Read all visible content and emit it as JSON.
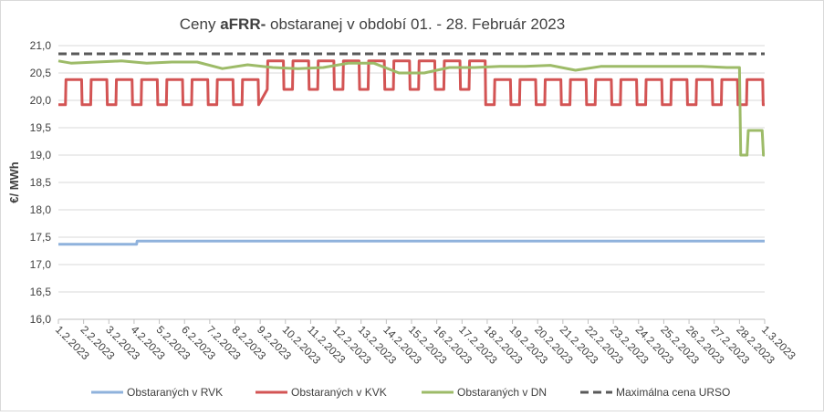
{
  "chart_data": {
    "type": "line",
    "title": {
      "prefix": "Ceny",
      "bold": "aFRR-",
      "rest": "obstaranej v období 01. - 28. Február 2023"
    },
    "y_label": "€/ MWh",
    "xlim": [
      1,
      29
    ],
    "xticks": [
      {
        "value": 1,
        "label": "1.2.2023"
      },
      {
        "value": 2,
        "label": "2.2.2023"
      },
      {
        "value": 3,
        "label": "3.2.2023"
      },
      {
        "value": 4,
        "label": "4.2.2023"
      },
      {
        "value": 5,
        "label": "5.2.2023"
      },
      {
        "value": 6,
        "label": "6.2.2023"
      },
      {
        "value": 7,
        "label": "7.2.2023"
      },
      {
        "value": 8,
        "label": "8.2.2023"
      },
      {
        "value": 9,
        "label": "9.2.2023"
      },
      {
        "value": 10,
        "label": "10.2.2023"
      },
      {
        "value": 11,
        "label": "11.2.2023"
      },
      {
        "value": 12,
        "label": "12.2.2023"
      },
      {
        "value": 13,
        "label": "13.2.2023"
      },
      {
        "value": 14,
        "label": "14.2.2023"
      },
      {
        "value": 15,
        "label": "15.2.2023"
      },
      {
        "value": 16,
        "label": "16.2.2023"
      },
      {
        "value": 17,
        "label": "17.2.2023"
      },
      {
        "value": 18,
        "label": "18.2.2023"
      },
      {
        "value": 19,
        "label": "19.2.2023"
      },
      {
        "value": 20,
        "label": "20.2.2023"
      },
      {
        "value": 21,
        "label": "21.2.2023"
      },
      {
        "value": 22,
        "label": "22.2.2023"
      },
      {
        "value": 23,
        "label": "23.2.2023"
      },
      {
        "value": 24,
        "label": "24.2.2023"
      },
      {
        "value": 25,
        "label": "25.2.2023"
      },
      {
        "value": 26,
        "label": "26.2.2023"
      },
      {
        "value": 27,
        "label": "27.2.2023"
      },
      {
        "value": 28,
        "label": "28.2.2023"
      },
      {
        "value": 29,
        "label": "1.3.2023"
      }
    ],
    "ylim": [
      16,
      21
    ],
    "yticks": [
      {
        "value": 16,
        "label": "16,0"
      },
      {
        "value": 16.5,
        "label": "16,5"
      },
      {
        "value": 17,
        "label": "17,0"
      },
      {
        "value": 17.5,
        "label": "17,5"
      },
      {
        "value": 18,
        "label": "18,0"
      },
      {
        "value": 18.5,
        "label": "18,5"
      },
      {
        "value": 19,
        "label": "19,0"
      },
      {
        "value": 19.5,
        "label": "19,5"
      },
      {
        "value": 20,
        "label": "20,0"
      },
      {
        "value": 20.5,
        "label": "20,5"
      },
      {
        "value": 21,
        "label": "21,0"
      }
    ],
    "grid": true,
    "legend": "bottom",
    "series": [
      {
        "name": "Obstaraných v RVK",
        "color": "#8fb2dc",
        "dashed": false,
        "x": [
          1,
          4.1,
          4.12,
          29
        ],
        "values": [
          17.37,
          17.37,
          17.43,
          17.43
        ]
      },
      {
        "name": "Obstaraných v KVK",
        "color": "#d35454",
        "dashed": false,
        "x": [
          1,
          1.28,
          1.3,
          1.92,
          1.94,
          2.28,
          2.3,
          2.92,
          2.94,
          3.28,
          3.3,
          3.92,
          3.94,
          4.28,
          4.3,
          4.92,
          4.94,
          5.28,
          5.3,
          5.92,
          5.94,
          6.28,
          6.3,
          6.92,
          6.94,
          7.28,
          7.3,
          7.92,
          7.94,
          8.28,
          8.3,
          8.92,
          8.94,
          9.28,
          9.3,
          9.92,
          9.94,
          10.28,
          10.3,
          10.92,
          10.94,
          11.28,
          11.3,
          11.92,
          11.94,
          12.28,
          12.3,
          12.92,
          12.94,
          13.28,
          13.3,
          13.92,
          13.94,
          14.28,
          14.3,
          14.92,
          14.94,
          15.28,
          15.3,
          15.92,
          15.94,
          16.28,
          16.3,
          16.92,
          16.94,
          17.28,
          17.3,
          17.92,
          17.94,
          18.28,
          18.3,
          18.92,
          18.94,
          19.28,
          19.3,
          19.92,
          19.94,
          20.28,
          20.3,
          20.92,
          20.94,
          21.28,
          21.3,
          21.92,
          21.94,
          22.28,
          22.3,
          22.92,
          22.94,
          23.28,
          23.3,
          23.92,
          23.94,
          24.28,
          24.3,
          24.92,
          24.94,
          25.28,
          25.3,
          25.92,
          25.94,
          26.28,
          26.3,
          26.92,
          26.94,
          27.28,
          27.3,
          27.92,
          27.94,
          28.28,
          28.3,
          28.92,
          28.94,
          29
        ],
        "values": [
          19.92,
          19.92,
          20.38,
          20.38,
          19.92,
          19.92,
          20.38,
          20.38,
          19.92,
          19.92,
          20.38,
          20.38,
          19.92,
          19.92,
          20.38,
          20.38,
          19.92,
          19.92,
          20.38,
          20.38,
          19.92,
          19.92,
          20.38,
          20.38,
          19.92,
          19.92,
          20.38,
          20.38,
          19.92,
          19.92,
          20.38,
          20.38,
          19.92,
          20.2,
          20.72,
          20.72,
          20.2,
          20.2,
          20.72,
          20.72,
          20.2,
          20.2,
          20.72,
          20.72,
          20.2,
          20.2,
          20.72,
          20.72,
          20.2,
          20.2,
          20.72,
          20.72,
          20.2,
          20.2,
          20.72,
          20.72,
          20.2,
          20.2,
          20.72,
          20.72,
          20.2,
          20.2,
          20.72,
          20.72,
          20.2,
          20.2,
          20.72,
          20.72,
          19.92,
          19.92,
          20.38,
          20.38,
          19.92,
          19.92,
          20.38,
          20.38,
          19.92,
          19.92,
          20.38,
          20.38,
          19.92,
          19.92,
          20.38,
          20.38,
          19.92,
          19.92,
          20.38,
          20.38,
          19.92,
          19.92,
          20.38,
          20.38,
          19.92,
          19.92,
          20.38,
          20.38,
          19.92,
          19.92,
          20.38,
          20.38,
          19.92,
          19.92,
          20.38,
          20.38,
          19.92,
          19.92,
          20.38,
          20.38,
          19.92,
          19.92,
          20.38,
          20.38,
          19.92,
          19.92
        ]
      },
      {
        "name": "Obstaraných v DN",
        "color": "#9dbb68",
        "dashed": false,
        "x": [
          1,
          1.5,
          2.5,
          3.5,
          4.5,
          5.5,
          6.5,
          7.5,
          8.5,
          9.5,
          10.5,
          11.5,
          12.5,
          13.5,
          14.5,
          15.5,
          16.5,
          17.5,
          18.5,
          19.5,
          20.5,
          21.5,
          22.5,
          23.5,
          24.5,
          25.5,
          26.5,
          27.5,
          28,
          28.05,
          28.3,
          28.35,
          28.9,
          28.95,
          29
        ],
        "values": [
          20.72,
          20.68,
          20.7,
          20.72,
          20.68,
          20.7,
          20.7,
          20.58,
          20.65,
          20.6,
          20.58,
          20.6,
          20.68,
          20.68,
          20.5,
          20.5,
          20.6,
          20.6,
          20.62,
          20.62,
          20.64,
          20.55,
          20.62,
          20.62,
          20.62,
          20.62,
          20.62,
          20.6,
          20.6,
          19.0,
          19.0,
          19.45,
          19.45,
          19.0,
          19.0
        ]
      },
      {
        "name": "Maximálna cena URSO",
        "color": "#595959",
        "dashed": true,
        "x": [
          1,
          29
        ],
        "values": [
          20.85,
          20.85
        ]
      }
    ]
  }
}
